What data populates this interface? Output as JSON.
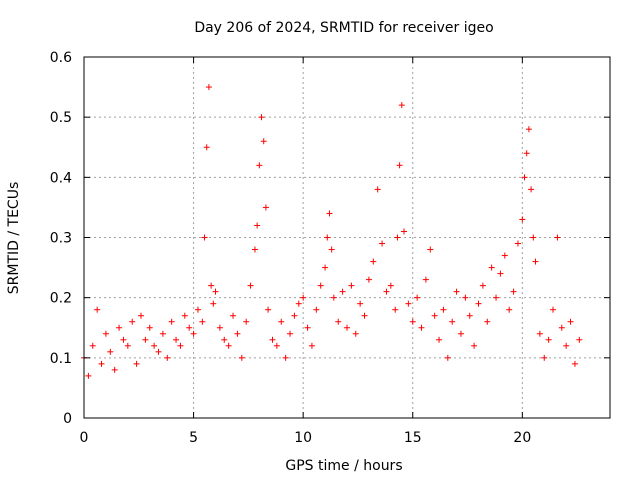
{
  "chart_data": {
    "type": "scatter",
    "title": "Day 206 of 2024, SRMTID for receiver igeo",
    "xlabel": "GPS time / hours",
    "ylabel": "SRMTID / TECUs",
    "xlim": [
      0,
      24
    ],
    "ylim": [
      0,
      0.6
    ],
    "xticks": [
      0,
      5,
      10,
      15,
      20
    ],
    "xtick_labels": [
      "0",
      "5",
      "10",
      "15",
      "20"
    ],
    "yticks": [
      0,
      0.1,
      0.2,
      0.3,
      0.4,
      0.5,
      0.6
    ],
    "ytick_labels": [
      "0",
      "0.1",
      "0.2",
      "0.3",
      "0.4",
      "0.5",
      "0.6"
    ],
    "grid": true,
    "marker": "plus",
    "color": "#ff0000",
    "series": [
      {
        "name": "SRMTID",
        "x": [
          0.0,
          0.2,
          0.4,
          0.6,
          0.8,
          1.0,
          1.2,
          1.4,
          1.6,
          1.8,
          2.0,
          2.2,
          2.4,
          2.6,
          2.8,
          3.0,
          3.2,
          3.4,
          3.6,
          3.8,
          4.0,
          4.2,
          4.4,
          4.6,
          4.8,
          5.0,
          5.2,
          5.4,
          5.5,
          5.6,
          5.7,
          5.8,
          5.9,
          6.0,
          6.2,
          6.4,
          6.6,
          6.8,
          7.0,
          7.2,
          7.4,
          7.6,
          7.8,
          7.9,
          8.0,
          8.1,
          8.2,
          8.3,
          8.4,
          8.6,
          8.8,
          9.0,
          9.2,
          9.4,
          9.6,
          9.8,
          10.0,
          10.2,
          10.4,
          10.6,
          10.8,
          11.0,
          11.1,
          11.2,
          11.3,
          11.4,
          11.6,
          11.8,
          12.0,
          12.2,
          12.4,
          12.6,
          12.8,
          13.0,
          13.2,
          13.4,
          13.6,
          13.8,
          14.0,
          14.2,
          14.3,
          14.4,
          14.5,
          14.6,
          14.8,
          15.0,
          15.2,
          15.4,
          15.6,
          15.8,
          16.0,
          16.2,
          16.4,
          16.6,
          16.8,
          17.0,
          17.2,
          17.4,
          17.6,
          17.8,
          18.0,
          18.2,
          18.4,
          18.6,
          18.8,
          19.0,
          19.2,
          19.4,
          19.6,
          19.8,
          20.0,
          20.1,
          20.2,
          20.3,
          20.4,
          20.5,
          20.6,
          20.8,
          21.0,
          21.2,
          21.4,
          21.6,
          21.8,
          22.0,
          22.2,
          22.4,
          22.6
        ],
        "y": [
          0.1,
          0.07,
          0.12,
          0.18,
          0.09,
          0.14,
          0.11,
          0.08,
          0.15,
          0.13,
          0.12,
          0.16,
          0.09,
          0.17,
          0.13,
          0.15,
          0.12,
          0.11,
          0.14,
          0.1,
          0.16,
          0.13,
          0.12,
          0.17,
          0.15,
          0.14,
          0.18,
          0.16,
          0.3,
          0.45,
          0.55,
          0.22,
          0.19,
          0.21,
          0.15,
          0.13,
          0.12,
          0.17,
          0.14,
          0.1,
          0.16,
          0.22,
          0.28,
          0.32,
          0.42,
          0.5,
          0.46,
          0.35,
          0.18,
          0.13,
          0.12,
          0.16,
          0.1,
          0.14,
          0.17,
          0.19,
          0.2,
          0.15,
          0.12,
          0.18,
          0.22,
          0.25,
          0.3,
          0.34,
          0.28,
          0.2,
          0.16,
          0.21,
          0.15,
          0.22,
          0.14,
          0.19,
          0.17,
          0.23,
          0.26,
          0.38,
          0.29,
          0.21,
          0.22,
          0.18,
          0.3,
          0.42,
          0.52,
          0.31,
          0.19,
          0.16,
          0.2,
          0.15,
          0.23,
          0.28,
          0.17,
          0.13,
          0.18,
          0.1,
          0.16,
          0.21,
          0.14,
          0.2,
          0.17,
          0.12,
          0.19,
          0.22,
          0.16,
          0.25,
          0.2,
          0.24,
          0.27,
          0.18,
          0.21,
          0.29,
          0.33,
          0.4,
          0.44,
          0.48,
          0.38,
          0.3,
          0.26,
          0.14,
          0.1,
          0.13,
          0.18,
          0.3,
          0.15,
          0.12,
          0.16,
          0.09,
          0.13
        ]
      }
    ]
  }
}
